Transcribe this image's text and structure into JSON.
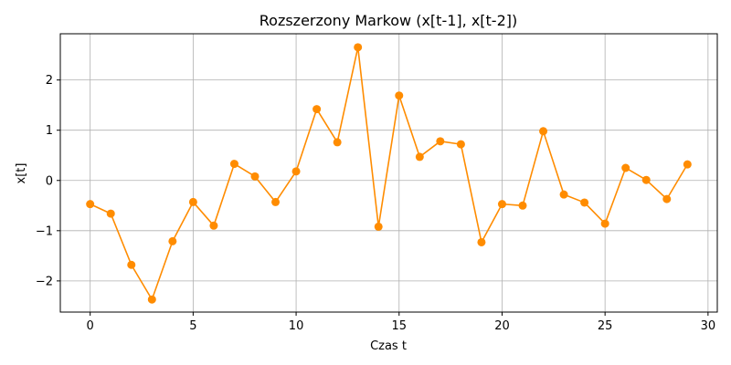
{
  "chart_data": {
    "type": "line",
    "title": "Rozszerzony Markow (x[t-1], x[t-2])",
    "xlabel": "Czas t",
    "ylabel": "x[t]",
    "xlim": [
      -1.45,
      30.45
    ],
    "ylim": [
      -2.62,
      2.92
    ],
    "xticks": [
      0,
      5,
      10,
      15,
      20,
      25,
      30
    ],
    "yticks": [
      -2,
      -1,
      0,
      1,
      2
    ],
    "xtick_labels": [
      "0",
      "5",
      "10",
      "15",
      "20",
      "25",
      "30"
    ],
    "ytick_labels": [
      "−2",
      "−1",
      "0",
      "1",
      "2"
    ],
    "grid": true,
    "color": "#ff8c00",
    "series": [
      {
        "x": [
          0,
          1,
          2,
          3,
          4,
          5,
          6,
          7,
          8,
          9,
          10,
          11,
          12,
          13,
          14,
          15,
          16,
          17,
          18,
          19,
          20,
          21,
          22,
          23,
          24,
          25,
          26,
          27,
          28,
          29
        ],
        "values": [
          -0.47,
          -0.66,
          -1.68,
          -2.37,
          -1.21,
          -0.43,
          -0.9,
          0.33,
          0.08,
          -0.43,
          0.18,
          1.42,
          0.76,
          2.65,
          -0.92,
          1.69,
          0.47,
          0.78,
          0.72,
          -1.23,
          -0.47,
          -0.5,
          0.98,
          -0.28,
          -0.44,
          -0.86,
          0.25,
          0.01,
          -0.37,
          0.32
        ]
      }
    ]
  }
}
